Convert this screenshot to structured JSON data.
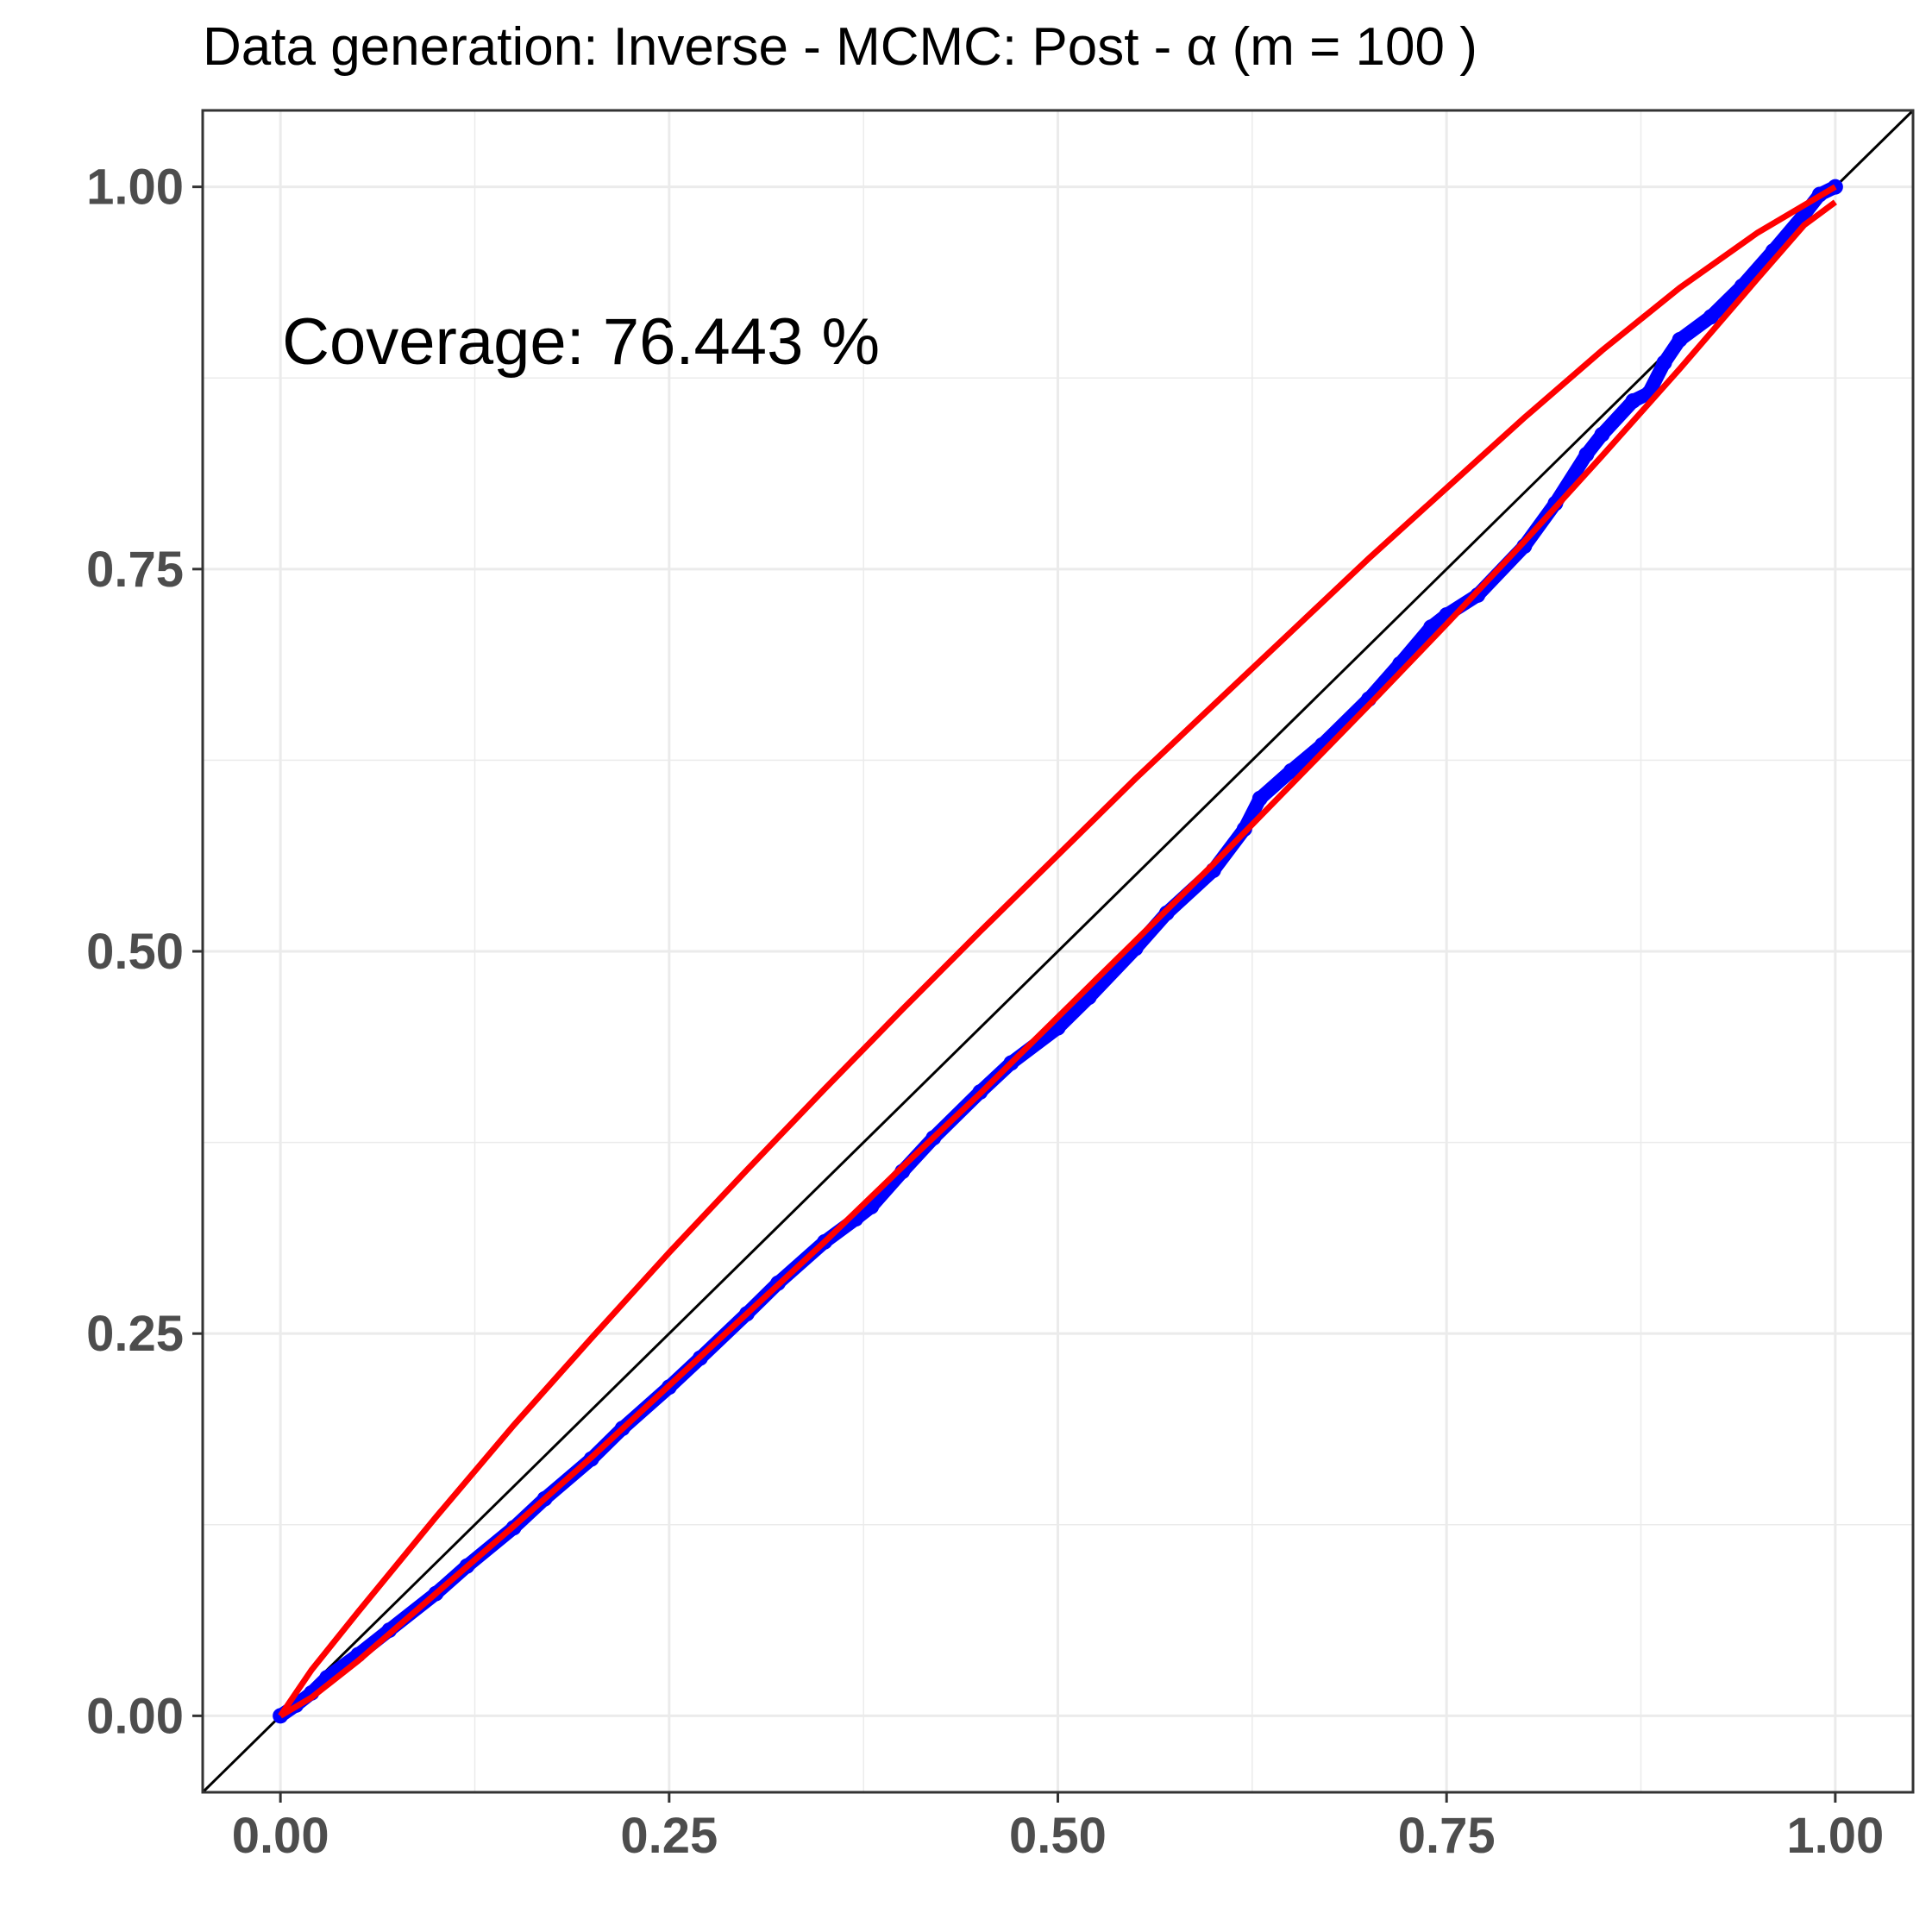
{
  "chart_data": {
    "type": "scatter",
    "title": "Data generation:  Inverse - MCMC:  Post  -  α  (m =  100 )",
    "annotation": "Coverage:  76.443 %",
    "xlabel": "",
    "ylabel": "",
    "xlim": [
      -0.05,
      1.05
    ],
    "ylim": [
      -0.05,
      1.05
    ],
    "x_ticks": [
      0.0,
      0.25,
      0.5,
      0.75,
      1.0
    ],
    "y_ticks": [
      0.0,
      0.25,
      0.5,
      0.75,
      1.0
    ],
    "x_tick_labels": [
      "0.00",
      "0.25",
      "0.50",
      "0.75",
      "1.00"
    ],
    "y_tick_labels": [
      "0.00",
      "0.25",
      "0.50",
      "0.75",
      "1.00"
    ],
    "grid": true,
    "legend": "none",
    "colors": {
      "points": "#0000ff",
      "band": "#ff0000",
      "reference": "#000000",
      "grid": "#ebebeb",
      "tick_labels": "#4d4d4d"
    },
    "reference_line": {
      "x": [
        -0.05,
        1.05
      ],
      "y": [
        -0.05,
        1.05
      ]
    },
    "points": {
      "x": [
        0.0,
        0.01,
        0.02,
        0.03,
        0.05,
        0.07,
        0.1,
        0.12,
        0.15,
        0.17,
        0.2,
        0.22,
        0.25,
        0.27,
        0.3,
        0.32,
        0.35,
        0.37,
        0.38,
        0.4,
        0.42,
        0.45,
        0.47,
        0.5,
        0.52,
        0.55,
        0.57,
        0.6,
        0.62,
        0.63,
        0.65,
        0.67,
        0.7,
        0.72,
        0.74,
        0.75,
        0.77,
        0.8,
        0.82,
        0.84,
        0.85,
        0.87,
        0.88,
        0.89,
        0.9,
        0.92,
        0.94,
        0.96,
        0.98,
        0.99,
        1.0
      ],
      "y": [
        0.0,
        0.007,
        0.015,
        0.025,
        0.04,
        0.056,
        0.08,
        0.098,
        0.123,
        0.142,
        0.168,
        0.188,
        0.215,
        0.234,
        0.263,
        0.283,
        0.31,
        0.325,
        0.333,
        0.356,
        0.378,
        0.408,
        0.427,
        0.45,
        0.47,
        0.502,
        0.525,
        0.553,
        0.58,
        0.6,
        0.618,
        0.635,
        0.665,
        0.688,
        0.712,
        0.72,
        0.733,
        0.765,
        0.793,
        0.825,
        0.838,
        0.86,
        0.865,
        0.885,
        0.9,
        0.915,
        0.935,
        0.958,
        0.982,
        0.995,
        1.0
      ]
    },
    "band_upper": {
      "x": [
        0.0,
        0.01,
        0.02,
        0.05,
        0.1,
        0.15,
        0.2,
        0.25,
        0.3,
        0.35,
        0.4,
        0.45,
        0.5,
        0.55,
        0.6,
        0.65,
        0.7,
        0.75,
        0.8,
        0.85,
        0.9,
        0.95,
        0.98,
        1.0
      ],
      "y": [
        0.0,
        0.015,
        0.03,
        0.068,
        0.13,
        0.19,
        0.247,
        0.303,
        0.357,
        0.41,
        0.462,
        0.513,
        0.563,
        0.613,
        0.661,
        0.709,
        0.757,
        0.803,
        0.849,
        0.893,
        0.934,
        0.97,
        0.988,
        1.0
      ]
    },
    "band_lower": {
      "x": [
        0.0,
        0.02,
        0.05,
        0.1,
        0.15,
        0.2,
        0.25,
        0.3,
        0.35,
        0.4,
        0.45,
        0.5,
        0.55,
        0.6,
        0.65,
        0.7,
        0.75,
        0.8,
        0.85,
        0.9,
        0.95,
        0.98,
        1.0
      ],
      "y": [
        0.0,
        0.012,
        0.036,
        0.08,
        0.124,
        0.169,
        0.216,
        0.263,
        0.31,
        0.359,
        0.407,
        0.457,
        0.507,
        0.557,
        0.609,
        0.661,
        0.714,
        0.768,
        0.824,
        0.881,
        0.94,
        0.975,
        0.99
      ]
    }
  }
}
